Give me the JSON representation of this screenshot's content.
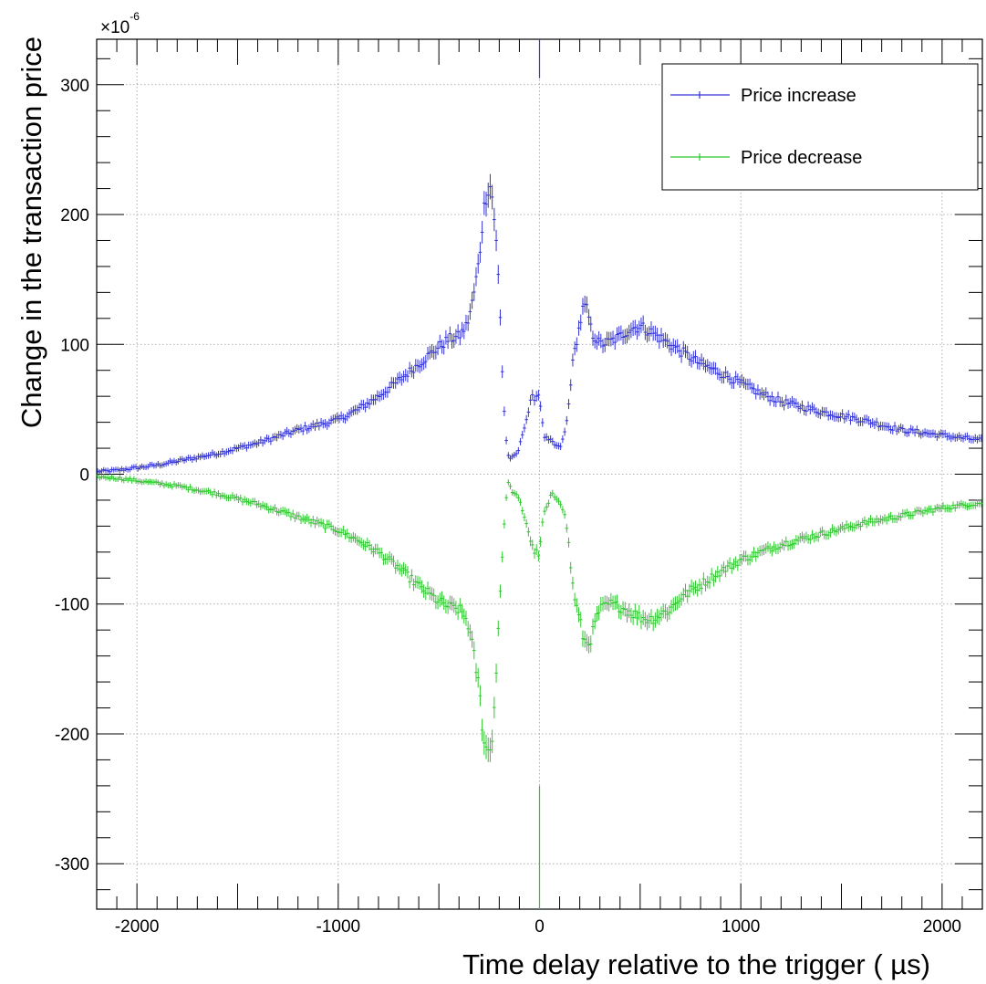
{
  "chart_data": {
    "type": "scatter",
    "title": "",
    "xlabel": "Time delay relative to the trigger (  µs)",
    "ylabel": "Change in the transaction price",
    "y_multiplier": "×10",
    "y_multiplier_exp": "-6",
    "xlim": [
      -2200,
      2200
    ],
    "ylim": [
      -335,
      335
    ],
    "x_ticks": [
      -2000,
      -1000,
      0,
      1000,
      2000
    ],
    "x_tick_labels": [
      "-2000",
      "-1000",
      "0",
      "1000",
      "2000"
    ],
    "y_ticks": [
      -300,
      -200,
      -100,
      0,
      100,
      200,
      300
    ],
    "y_tick_labels": [
      "-300",
      "-200",
      "-100",
      "0",
      "100",
      "200",
      "300"
    ],
    "grid": true,
    "legend_position": "top-right",
    "series": [
      {
        "name": "Price increase",
        "color": "#3434d6",
        "x": [
          -2200,
          -2100,
          -2000,
          -1900,
          -1800,
          -1700,
          -1600,
          -1500,
          -1400,
          -1300,
          -1200,
          -1100,
          -1000,
          -900,
          -800,
          -700,
          -600,
          -500,
          -450,
          -400,
          -360,
          -330,
          -300,
          -280,
          -260,
          -240,
          -220,
          -200,
          -180,
          -160,
          -140,
          -120,
          -100,
          -80,
          -60,
          -40,
          -20,
          0,
          20,
          40,
          60,
          80,
          100,
          120,
          140,
          160,
          180,
          200,
          220,
          240,
          260,
          280,
          300,
          350,
          400,
          450,
          500,
          550,
          600,
          650,
          700,
          800,
          900,
          1000,
          1100,
          1200,
          1300,
          1400,
          1500,
          1600,
          1700,
          1800,
          1900,
          2000,
          2100,
          2200
        ],
        "y": [
          2,
          3,
          5,
          7,
          10,
          13,
          16,
          20,
          24,
          29,
          34,
          38,
          42,
          50,
          60,
          72,
          85,
          98,
          104,
          106,
          115,
          135,
          165,
          200,
          220,
          222,
          190,
          140,
          60,
          15,
          12,
          14,
          20,
          35,
          45,
          58,
          60,
          62,
          30,
          26,
          25,
          22,
          20,
          28,
          45,
          80,
          100,
          115,
          130,
          125,
          108,
          105,
          100,
          102,
          106,
          112,
          114,
          110,
          105,
          100,
          95,
          85,
          78,
          70,
          62,
          56,
          52,
          48,
          45,
          42,
          38,
          34,
          32,
          30,
          28,
          26
        ]
      },
      {
        "name": "Price decrease",
        "color": "#2ec82e",
        "x": [
          -2200,
          -2100,
          -2000,
          -1900,
          -1800,
          -1700,
          -1600,
          -1500,
          -1400,
          -1300,
          -1200,
          -1100,
          -1000,
          -900,
          -800,
          -700,
          -600,
          -500,
          -450,
          -400,
          -360,
          -330,
          -300,
          -280,
          -260,
          -240,
          -220,
          -200,
          -180,
          -160,
          -140,
          -120,
          -100,
          -80,
          -60,
          -40,
          -20,
          0,
          20,
          40,
          60,
          80,
          100,
          120,
          140,
          160,
          180,
          200,
          220,
          240,
          260,
          280,
          300,
          350,
          400,
          450,
          500,
          550,
          600,
          650,
          700,
          800,
          900,
          1000,
          1100,
          1200,
          1300,
          1400,
          1500,
          1600,
          1700,
          1800,
          1900,
          2000,
          2100,
          2200
        ],
        "y": [
          -2,
          -3,
          -5,
          -7,
          -9,
          -12,
          -15,
          -19,
          -23,
          -28,
          -33,
          -38,
          -43,
          -51,
          -60,
          -72,
          -86,
          -98,
          -102,
          -104,
          -112,
          -135,
          -165,
          -200,
          -215,
          -210,
          -170,
          -100,
          -52,
          -5,
          -12,
          -16,
          -20,
          -30,
          -40,
          -55,
          -60,
          -62,
          -30,
          -25,
          -15,
          -18,
          -20,
          -28,
          -45,
          -80,
          -100,
          -112,
          -128,
          -130,
          -125,
          -112,
          -104,
          -100,
          -102,
          -106,
          -110,
          -112,
          -108,
          -104,
          -95,
          -85,
          -75,
          -66,
          -60,
          -54,
          -50,
          -46,
          -42,
          -38,
          -35,
          -32,
          -29,
          -26,
          -24,
          -22
        ]
      }
    ],
    "spikes": [
      {
        "series": "Price increase",
        "x": 0,
        "y_from": 305,
        "y_to": 335
      },
      {
        "series": "Price decrease",
        "x": 0,
        "y_from": -240,
        "y_to": -335
      }
    ]
  }
}
